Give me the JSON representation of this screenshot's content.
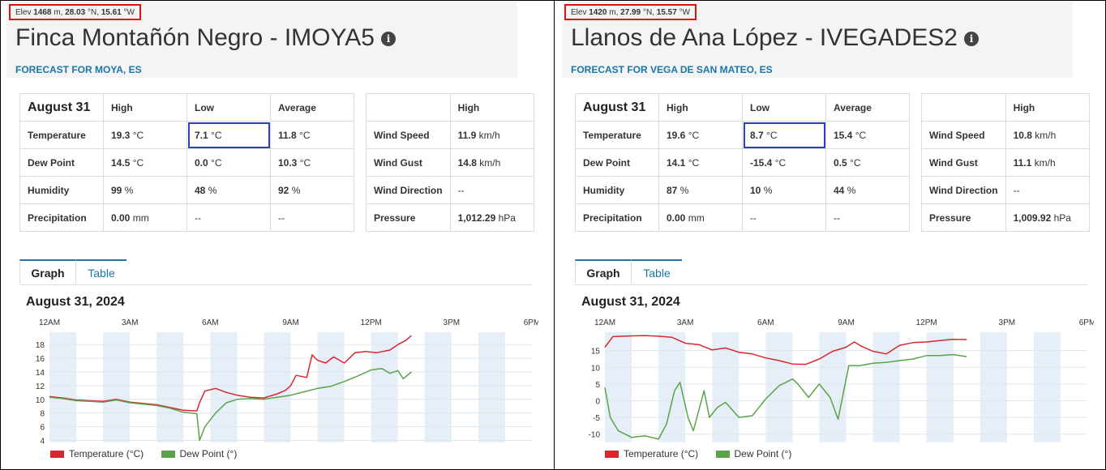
{
  "colors": {
    "temperature": "#d9262f",
    "dew_point": "#5aa34a",
    "accent": "#1a76a8",
    "shade": "#e6eef8"
  },
  "stations": [
    {
      "elev_prefix": "Elev",
      "elev_value": "1468",
      "elev_rest": "m, ",
      "lat": "28.03",
      "lat_unit": "°N, ",
      "lon": "15.61",
      "lon_unit": "°W",
      "title": "Finca Montañón Negro - IMOYA5",
      "info_icon": "info-icon",
      "forecast": "FORECAST FOR MOYA, ES",
      "summary": {
        "date": "August 31",
        "col_high": "High",
        "col_low": "Low",
        "col_avg": "Average",
        "rows": [
          {
            "label": "Temperature",
            "high": "19.3",
            "high_u": "°C",
            "low": "7.1",
            "low_u": "°C",
            "avg": "11.8",
            "avg_u": "°C"
          },
          {
            "label": "Dew Point",
            "high": "14.5",
            "high_u": "°C",
            "low": "0.0",
            "low_u": "°C",
            "avg": "10.3",
            "avg_u": "°C"
          },
          {
            "label": "Humidity",
            "high": "99",
            "high_u": "%",
            "low": "48",
            "low_u": "%",
            "avg": "92",
            "avg_u": "%"
          },
          {
            "label": "Precipitation",
            "high": "0.00",
            "high_u": "mm",
            "low": "--",
            "low_u": "",
            "avg": "--",
            "avg_u": ""
          }
        ]
      },
      "wind": {
        "col_high": "High",
        "rows": [
          {
            "label": "Wind Speed",
            "value": "11.9",
            "unit": "km/h"
          },
          {
            "label": "Wind Gust",
            "value": "14.8",
            "unit": "km/h"
          },
          {
            "label": "Wind Direction",
            "value": "--",
            "unit": ""
          },
          {
            "label": "Pressure",
            "value": "1,012.29",
            "unit": "hPa"
          }
        ]
      },
      "tabs": {
        "graph": "Graph",
        "table": "Table"
      },
      "graph_date": "August 31, 2024",
      "chart_data": {
        "type": "line",
        "x_ticks": [
          "12AM",
          "3AM",
          "6AM",
          "9AM",
          "12PM",
          "3PM",
          "6PM"
        ],
        "y_ticks": [
          4,
          6,
          8,
          10,
          12,
          14,
          16,
          18
        ],
        "ylim": [
          3.7,
          19.8
        ],
        "xlim_hours": [
          0,
          18
        ],
        "legend": [
          "Temperature (°C)",
          "Dew Point (°)"
        ],
        "series": [
          {
            "name": "Temperature (°C)",
            "points": [
              [
                0,
                10.4
              ],
              [
                0.5,
                10.2
              ],
              [
                1,
                9.9
              ],
              [
                1.5,
                9.8
              ],
              [
                2,
                9.7
              ],
              [
                2.5,
                10.0
              ],
              [
                3,
                9.6
              ],
              [
                3.5,
                9.4
              ],
              [
                4,
                9.2
              ],
              [
                4.5,
                8.8
              ],
              [
                5,
                8.4
              ],
              [
                5.5,
                8.3
              ],
              [
                5.6,
                9.5
              ],
              [
                5.8,
                11.2
              ],
              [
                6.2,
                11.6
              ],
              [
                6.6,
                11.0
              ],
              [
                7,
                10.6
              ],
              [
                7.5,
                10.3
              ],
              [
                8,
                10.2
              ],
              [
                8.5,
                10.8
              ],
              [
                8.8,
                11.3
              ],
              [
                9,
                12.0
              ],
              [
                9.2,
                13.5
              ],
              [
                9.6,
                13.2
              ],
              [
                9.8,
                16.5
              ],
              [
                10,
                15.7
              ],
              [
                10.3,
                15.3
              ],
              [
                10.6,
                16.2
              ],
              [
                11,
                15.3
              ],
              [
                11.4,
                16.8
              ],
              [
                11.8,
                17.0
              ],
              [
                12.2,
                16.8
              ],
              [
                12.7,
                17.2
              ],
              [
                13,
                18.0
              ],
              [
                13.3,
                18.6
              ],
              [
                13.5,
                19.3
              ]
            ]
          },
          {
            "name": "Dew Point (°)",
            "points": [
              [
                0,
                10.3
              ],
              [
                0.5,
                10.1
              ],
              [
                1,
                9.8
              ],
              [
                1.5,
                9.7
              ],
              [
                2,
                9.6
              ],
              [
                2.5,
                9.9
              ],
              [
                3,
                9.5
              ],
              [
                3.5,
                9.3
              ],
              [
                4,
                9.1
              ],
              [
                4.5,
                8.7
              ],
              [
                5,
                8.1
              ],
              [
                5.5,
                7.9
              ],
              [
                5.6,
                4.0
              ],
              [
                5.8,
                6.0
              ],
              [
                6.2,
                8.0
              ],
              [
                6.6,
                9.5
              ],
              [
                7,
                10.0
              ],
              [
                7.5,
                10.1
              ],
              [
                8,
                10.0
              ],
              [
                8.5,
                10.3
              ],
              [
                9,
                10.6
              ],
              [
                9.5,
                11.1
              ],
              [
                10,
                11.6
              ],
              [
                10.5,
                11.9
              ],
              [
                11,
                12.6
              ],
              [
                11.5,
                13.4
              ],
              [
                12,
                14.3
              ],
              [
                12.4,
                14.5
              ],
              [
                12.7,
                13.8
              ],
              [
                13,
                14.2
              ],
              [
                13.2,
                13.0
              ],
              [
                13.5,
                14.0
              ]
            ]
          }
        ]
      }
    },
    {
      "elev_prefix": "Elev",
      "elev_value": "1420",
      "elev_rest": "m, ",
      "lat": "27.99",
      "lat_unit": "°N, ",
      "lon": "15.57",
      "lon_unit": "°W",
      "title": "Llanos de Ana López - IVEGADES2",
      "info_icon": "info-icon",
      "forecast": "FORECAST FOR VEGA DE SAN MATEO, ES",
      "summary": {
        "date": "August 31",
        "col_high": "High",
        "col_low": "Low",
        "col_avg": "Average",
        "rows": [
          {
            "label": "Temperature",
            "high": "19.6",
            "high_u": "°C",
            "low": "8.7",
            "low_u": "°C",
            "avg": "15.4",
            "avg_u": "°C"
          },
          {
            "label": "Dew Point",
            "high": "14.1",
            "high_u": "°C",
            "low": "-15.4",
            "low_u": "°C",
            "avg": "0.5",
            "avg_u": "°C"
          },
          {
            "label": "Humidity",
            "high": "87",
            "high_u": "%",
            "low": "10",
            "low_u": "%",
            "avg": "44",
            "avg_u": "%"
          },
          {
            "label": "Precipitation",
            "high": "0.00",
            "high_u": "mm",
            "low": "--",
            "low_u": "",
            "avg": "--",
            "avg_u": ""
          }
        ]
      },
      "wind": {
        "col_high": "High",
        "rows": [
          {
            "label": "Wind Speed",
            "value": "10.8",
            "unit": "km/h"
          },
          {
            "label": "Wind Gust",
            "value": "11.1",
            "unit": "km/h"
          },
          {
            "label": "Wind Direction",
            "value": "--",
            "unit": ""
          },
          {
            "label": "Pressure",
            "value": "1,009.92",
            "unit": "hPa"
          }
        ]
      },
      "tabs": {
        "graph": "Graph",
        "table": "Table"
      },
      "graph_date": "August 31, 2024",
      "chart_data": {
        "type": "line",
        "x_ticks": [
          "12AM",
          "3AM",
          "6AM",
          "9AM",
          "12PM",
          "3PM",
          "6PM"
        ],
        "y_ticks": [
          -10,
          -5,
          0,
          5,
          10,
          15
        ],
        "ylim": [
          -12.5,
          20.5
        ],
        "xlim_hours": [
          0,
          18
        ],
        "legend": [
          "Temperature (°C)",
          "Dew Point (°)"
        ],
        "series": [
          {
            "name": "Temperature (°C)",
            "points": [
              [
                0,
                16.0
              ],
              [
                0.3,
                19.2
              ],
              [
                1,
                19.4
              ],
              [
                1.5,
                19.5
              ],
              [
                2,
                19.3
              ],
              [
                2.5,
                19.0
              ],
              [
                3,
                17.2
              ],
              [
                3.5,
                16.8
              ],
              [
                4,
                15.2
              ],
              [
                4.5,
                15.8
              ],
              [
                5,
                14.5
              ],
              [
                5.5,
                14.0
              ],
              [
                6,
                12.8
              ],
              [
                6.5,
                12.0
              ],
              [
                7,
                11.0
              ],
              [
                7.5,
                10.9
              ],
              [
                8,
                12.5
              ],
              [
                8.5,
                14.8
              ],
              [
                9,
                16.0
              ],
              [
                9.3,
                17.6
              ],
              [
                9.6,
                16.2
              ],
              [
                10,
                14.8
              ],
              [
                10.5,
                14.0
              ],
              [
                11,
                16.6
              ],
              [
                11.5,
                17.4
              ],
              [
                12,
                17.6
              ],
              [
                12.5,
                18.0
              ],
              [
                13,
                18.4
              ],
              [
                13.5,
                18.3
              ]
            ]
          },
          {
            "name": "Dew Point (°)",
            "points": [
              [
                0,
                4.0
              ],
              [
                0.2,
                -5.0
              ],
              [
                0.5,
                -9.0
              ],
              [
                1,
                -11.0
              ],
              [
                1.5,
                -10.5
              ],
              [
                2,
                -11.5
              ],
              [
                2.3,
                -7.0
              ],
              [
                2.6,
                3.0
              ],
              [
                2.8,
                5.5
              ],
              [
                3.1,
                -5.0
              ],
              [
                3.3,
                -9.0
              ],
              [
                3.5,
                -3.0
              ],
              [
                3.7,
                3.0
              ],
              [
                3.9,
                -5.0
              ],
              [
                4.2,
                -2.0
              ],
              [
                4.5,
                -0.5
              ],
              [
                5,
                -5.0
              ],
              [
                5.5,
                -4.5
              ],
              [
                6,
                0.5
              ],
              [
                6.5,
                4.5
              ],
              [
                7,
                6.5
              ],
              [
                7.2,
                5.0
              ],
              [
                7.6,
                1.0
              ],
              [
                8,
                5.0
              ],
              [
                8.4,
                1.0
              ],
              [
                8.7,
                -5.5
              ],
              [
                9.1,
                10.5
              ],
              [
                9.5,
                10.5
              ],
              [
                10,
                11.2
              ],
              [
                10.5,
                11.5
              ],
              [
                11,
                12.0
              ],
              [
                11.5,
                12.5
              ],
              [
                12,
                13.5
              ],
              [
                12.5,
                13.5
              ],
              [
                13,
                13.8
              ],
              [
                13.5,
                13.2
              ]
            ]
          }
        ]
      }
    }
  ]
}
